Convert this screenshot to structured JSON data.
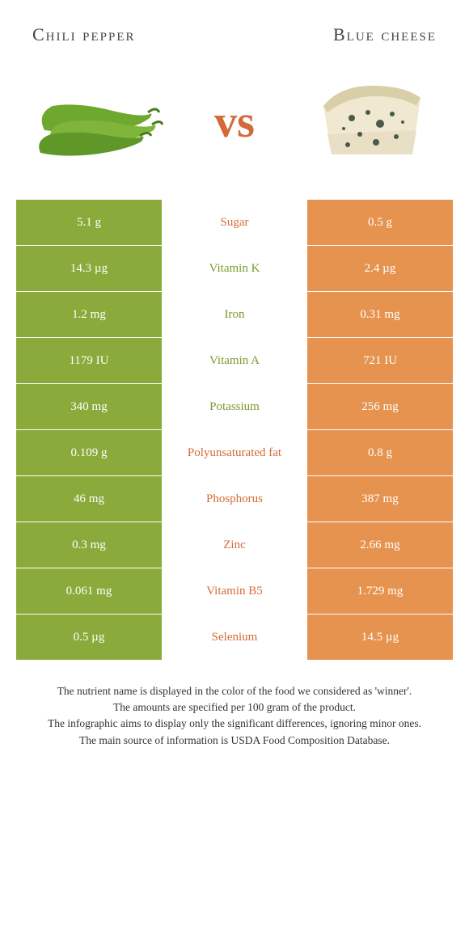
{
  "colors": {
    "left_bg": "#8aaa3b",
    "right_bg": "#e6934f",
    "nutrient_left_winner": "#7a9a2e",
    "nutrient_right_winner": "#d46a3a",
    "vs_color": "#d46a3a",
    "title_color": "#444444",
    "footer_color": "#333333",
    "background": "#ffffff"
  },
  "foods": {
    "left": {
      "title": "Chili pepper"
    },
    "right": {
      "title": "Blue cheese"
    }
  },
  "vs_label": "vs",
  "rows": [
    {
      "nutrient": "Sugar",
      "left": "5.1 g",
      "right": "0.5 g",
      "winner": "right"
    },
    {
      "nutrient": "Vitamin K",
      "left": "14.3 µg",
      "right": "2.4 µg",
      "winner": "left"
    },
    {
      "nutrient": "Iron",
      "left": "1.2 mg",
      "right": "0.31 mg",
      "winner": "left"
    },
    {
      "nutrient": "Vitamin A",
      "left": "1179 IU",
      "right": "721 IU",
      "winner": "left"
    },
    {
      "nutrient": "Potassium",
      "left": "340 mg",
      "right": "256 mg",
      "winner": "left"
    },
    {
      "nutrient": "Polyunsaturated fat",
      "left": "0.109 g",
      "right": "0.8 g",
      "winner": "right"
    },
    {
      "nutrient": "Phosphorus",
      "left": "46 mg",
      "right": "387 mg",
      "winner": "right"
    },
    {
      "nutrient": "Zinc",
      "left": "0.3 mg",
      "right": "2.66 mg",
      "winner": "right"
    },
    {
      "nutrient": "Vitamin B5",
      "left": "0.061 mg",
      "right": "1.729 mg",
      "winner": "right"
    },
    {
      "nutrient": "Selenium",
      "left": "0.5 µg",
      "right": "14.5 µg",
      "winner": "right"
    }
  ],
  "footer": {
    "line1": "The nutrient name is displayed in the color of the food we considered as 'winner'.",
    "line2": "The amounts are specified per 100 gram of the product.",
    "line3": "The infographic aims to display only the significant differences, ignoring minor ones.",
    "line4": "The main source of information is USDA Food Composition Database."
  }
}
